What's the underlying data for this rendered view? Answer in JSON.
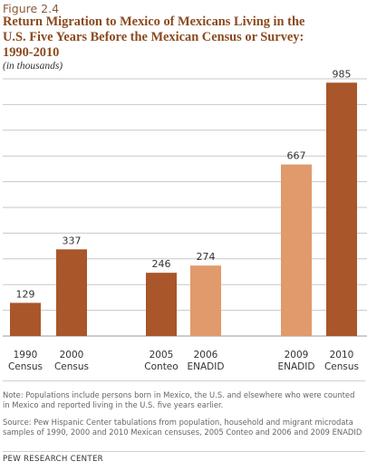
{
  "figure_label": "Figure 2.4",
  "title_lines": [
    "Return Migration to Mexico of Mexicans Living  in the",
    "U.S. Five Years Before the Mexican Census or Survey:",
    "1990-2010"
  ],
  "subtitle": "(in thousands)",
  "note": "Note: Populations include persons born in Mexico, the U.S. and elsewhere who were counted in Mexico and reported living in the U.S. five  years earlier.",
  "source": "Source: Pew Hispanic Center tabulations from population, household and migrant microdata samples of 1990, 2000 and 2010 Mexican censuses, 2005 Conteo and 2006 and 2009 ENADID",
  "footer": "PEW RESEARCH CENTER",
  "colors": {
    "census": "#a8562a",
    "survey": "#e09a6c",
    "grid": "#c8c8c8",
    "title": "#8b4a1f"
  },
  "chart_data": {
    "type": "bar",
    "categories": [
      [
        "1990",
        "Census"
      ],
      [
        "2000",
        "Census"
      ],
      [
        "2005",
        "Conteo"
      ],
      [
        "2006",
        "ENADID"
      ],
      [
        "2009",
        "ENADID"
      ],
      [
        "2010",
        "Census"
      ]
    ],
    "values": [
      129,
      337,
      246,
      274,
      667,
      985
    ],
    "bar_colors": [
      "#a8562a",
      "#a8562a",
      "#a8562a",
      "#e09a6c",
      "#e09a6c",
      "#a8562a"
    ],
    "ylim": [
      0,
      1000
    ],
    "grid": true
  }
}
